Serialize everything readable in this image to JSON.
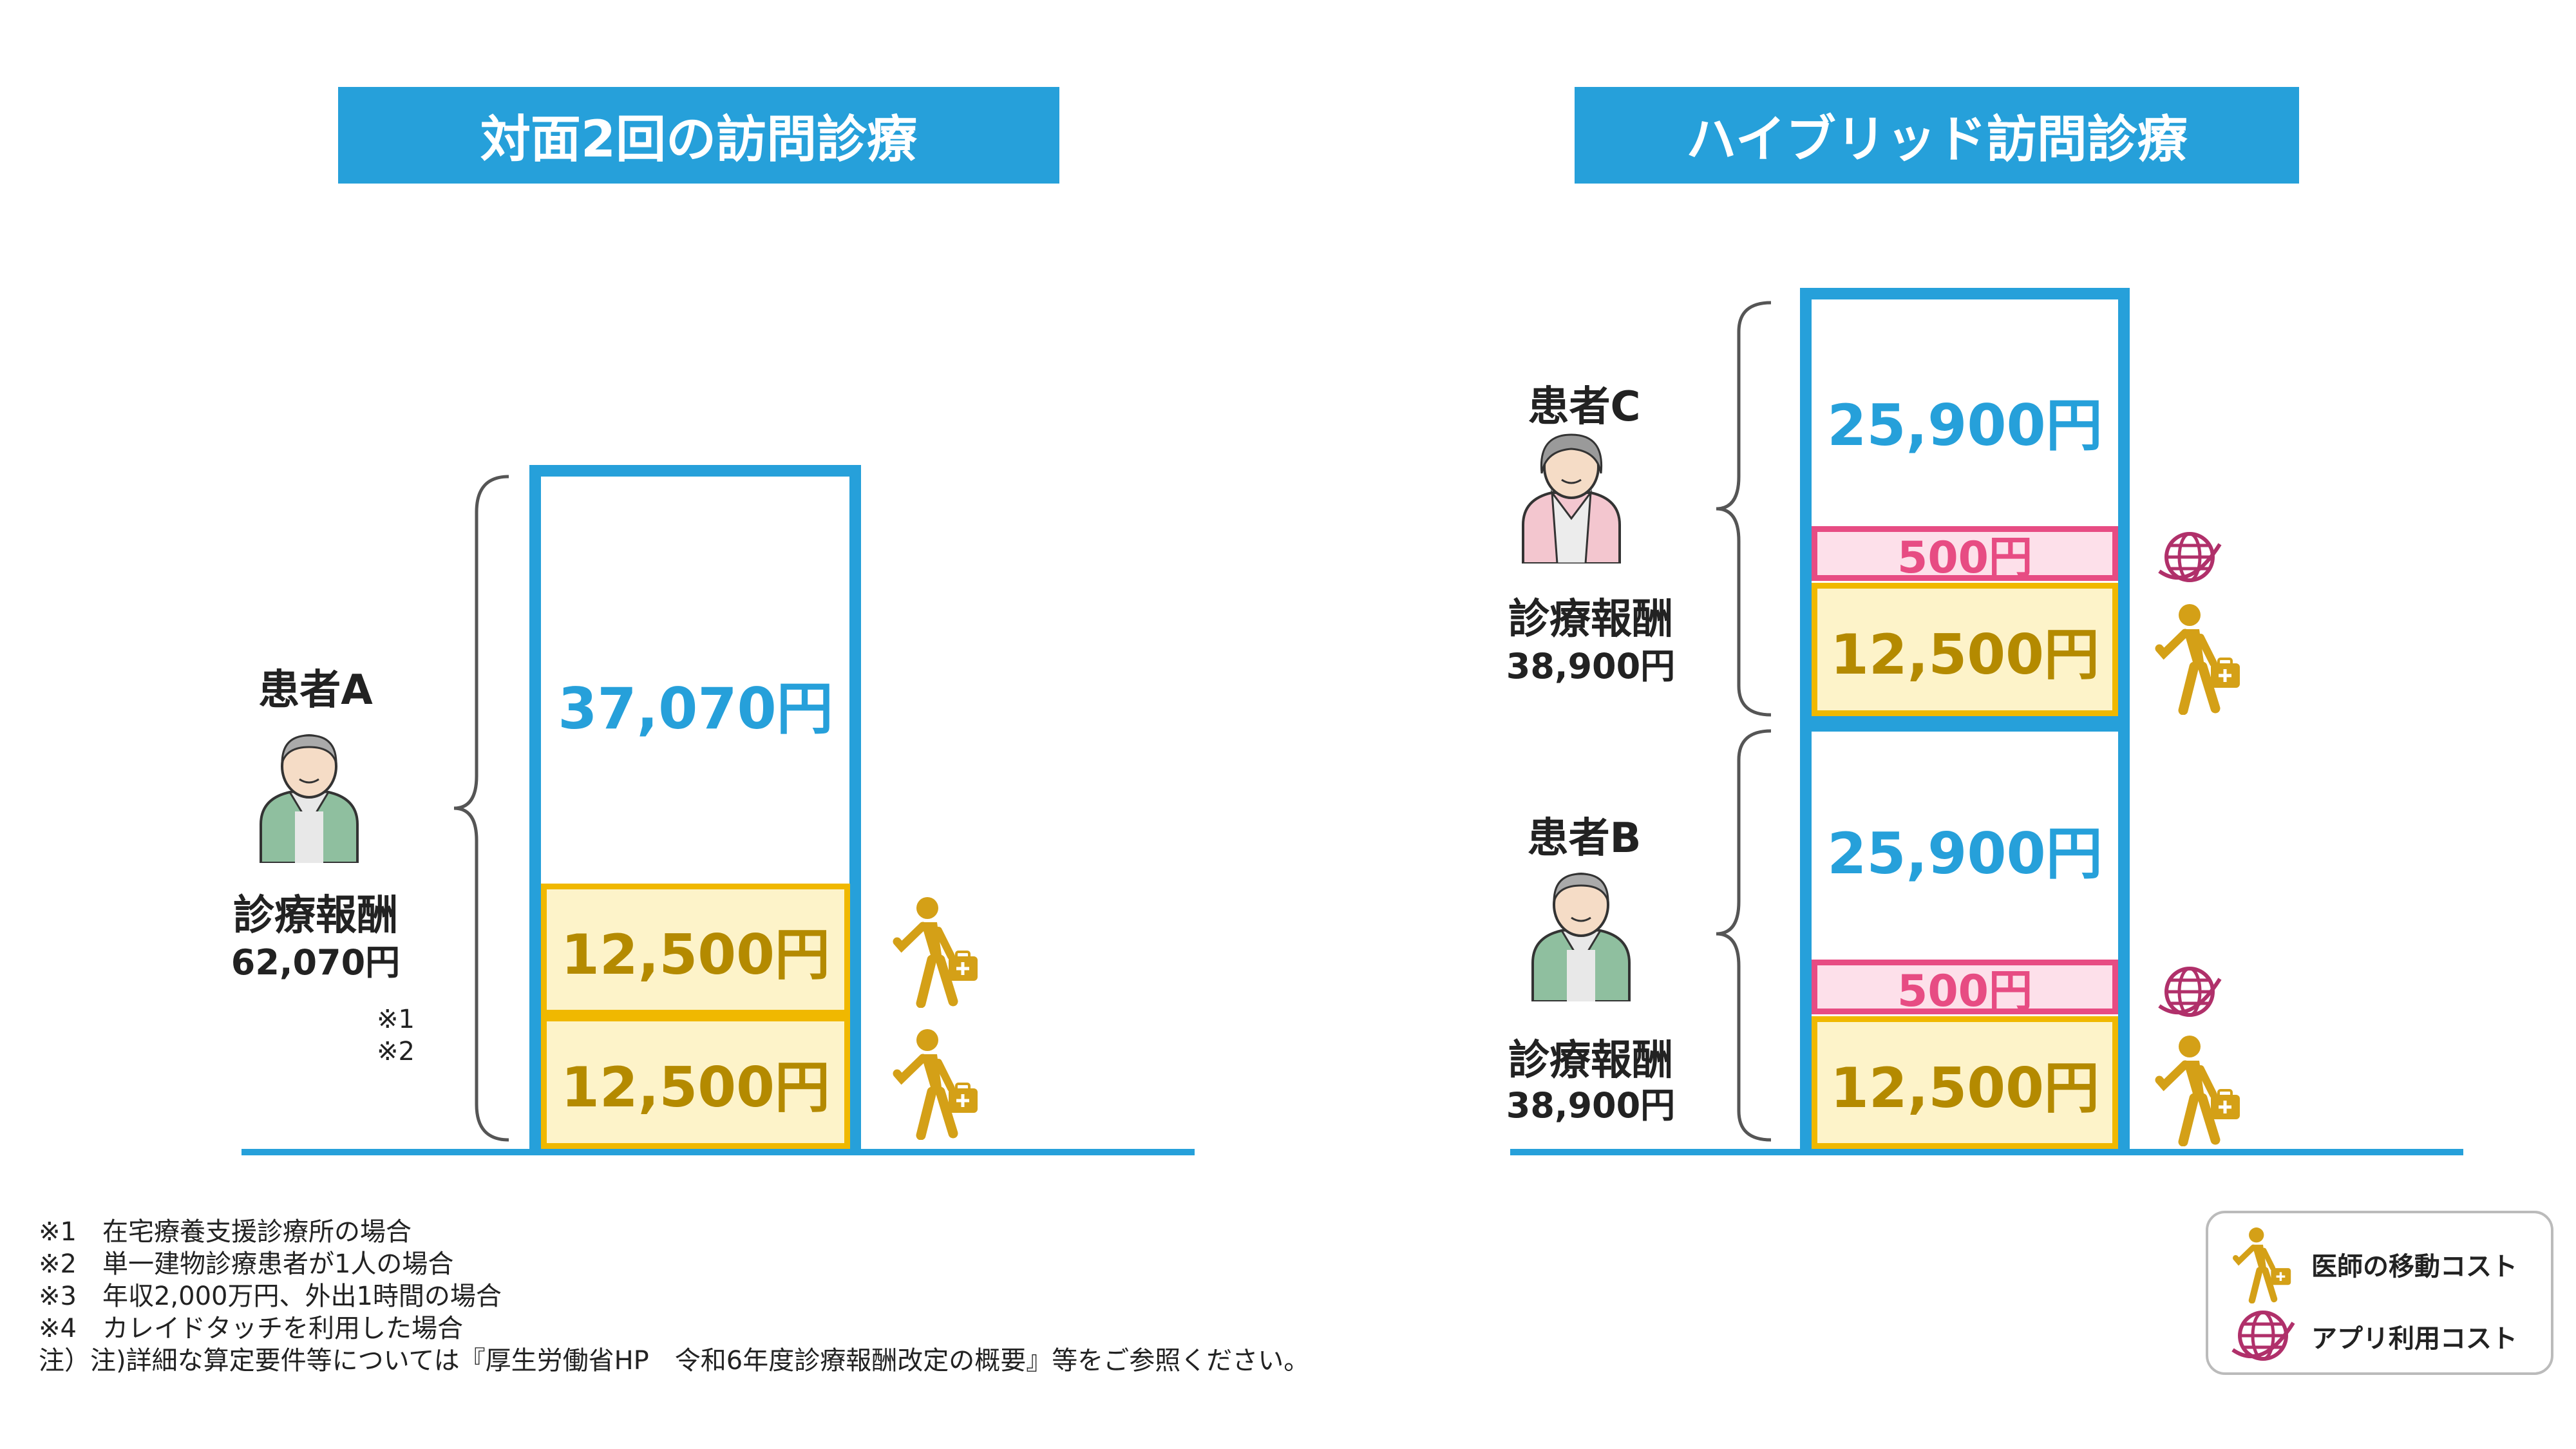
{
  "left": {
    "header": "対面2回の訪問診療",
    "patient_name": "患者A",
    "reward_label": "診療報酬",
    "reward_total": "62,070円",
    "notes": [
      "※1",
      "※2"
    ],
    "top_value": "37,070円",
    "travel_values": [
      "12,500円",
      "12,500円"
    ]
  },
  "right": {
    "header": "ハイブリッド訪問診療",
    "patient_c": {
      "name": "患者C",
      "reward_label": "診療報酬",
      "reward_total": "38,900円",
      "top_value": "25,900円",
      "app_value": "500円",
      "travel_value": "12,500円"
    },
    "patient_b": {
      "name": "患者B",
      "reward_label": "診療報酬",
      "reward_total": "38,900円",
      "top_value": "25,900円",
      "app_value": "500円",
      "travel_value": "12,500円"
    }
  },
  "footnotes": [
    "※1　在宅療養支援診療所の場合",
    "※2　単一建物診療患者が1人の場合",
    "※3　年収2,000万円、外出1時間の場合",
    "※4　カレイドタッチを利用した場合",
    "注）注)詳細な算定要件等については『厚生労働省HP　令和6年度診療報酬改定の概要』等をご参照ください。"
  ],
  "legend": {
    "travel_label": "医師の移動コスト",
    "app_label": "アプリ利用コスト"
  },
  "colors": {
    "blue": "#26a0da",
    "gold": "#f0b800",
    "gold_text": "#b48a00",
    "pink": "#e74c83",
    "walker": "#d4a017",
    "jacket_green": "#8fbf9f",
    "jacket_pink": "#f3c6cf"
  }
}
